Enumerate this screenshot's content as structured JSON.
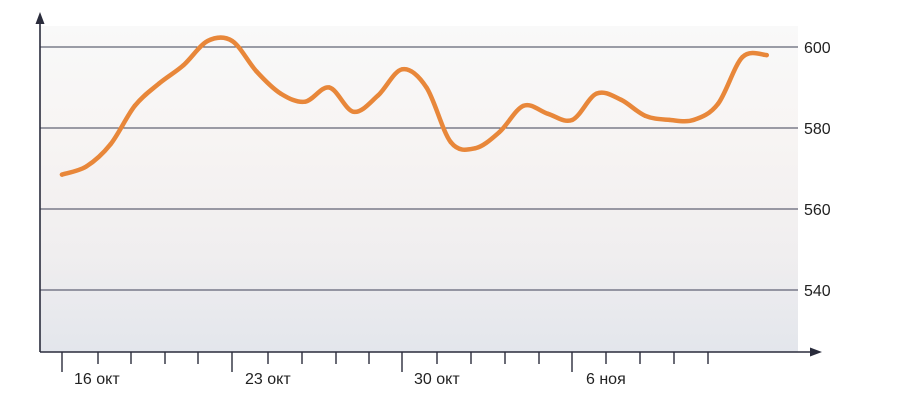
{
  "chart_data": {
    "type": "line",
    "title": "",
    "xlabel": "",
    "ylabel": "",
    "x_tick_labels": [
      "16 окт",
      "23 окт",
      "30 окт",
      "6 ноя"
    ],
    "y_ticks": [
      540,
      560,
      580,
      600
    ],
    "y_tick_labels": [
      "540",
      "560",
      "580",
      "600"
    ],
    "ylim": [
      525,
      608
    ],
    "grid": true,
    "legend": "none",
    "series": [
      {
        "color": "#e8873a",
        "x": [
          "2012-10-14",
          "2012-10-15",
          "2012-10-16",
          "2012-10-17",
          "2012-10-18",
          "2012-10-19",
          "2012-10-20",
          "2012-10-21",
          "2012-10-22",
          "2012-10-23",
          "2012-10-24",
          "2012-10-25",
          "2012-10-26",
          "2012-10-27",
          "2012-10-28",
          "2012-10-29",
          "2012-10-30",
          "2012-10-31",
          "2012-11-01",
          "2012-11-02",
          "2012-11-03",
          "2012-11-04",
          "2012-11-05",
          "2012-11-06",
          "2012-11-07",
          "2012-11-08",
          "2012-11-09",
          "2012-11-10",
          "2012-11-11",
          "2012-11-12"
        ],
        "values": [
          568.5,
          570.5,
          576,
          585.5,
          591,
          595.5,
          601.5,
          601.5,
          594,
          588.5,
          586.5,
          590,
          584,
          588,
          594.5,
          590,
          576.5,
          575,
          579,
          585.5,
          583.5,
          582,
          588.5,
          587,
          583,
          582,
          582,
          586,
          597.5,
          598
        ]
      }
    ]
  }
}
